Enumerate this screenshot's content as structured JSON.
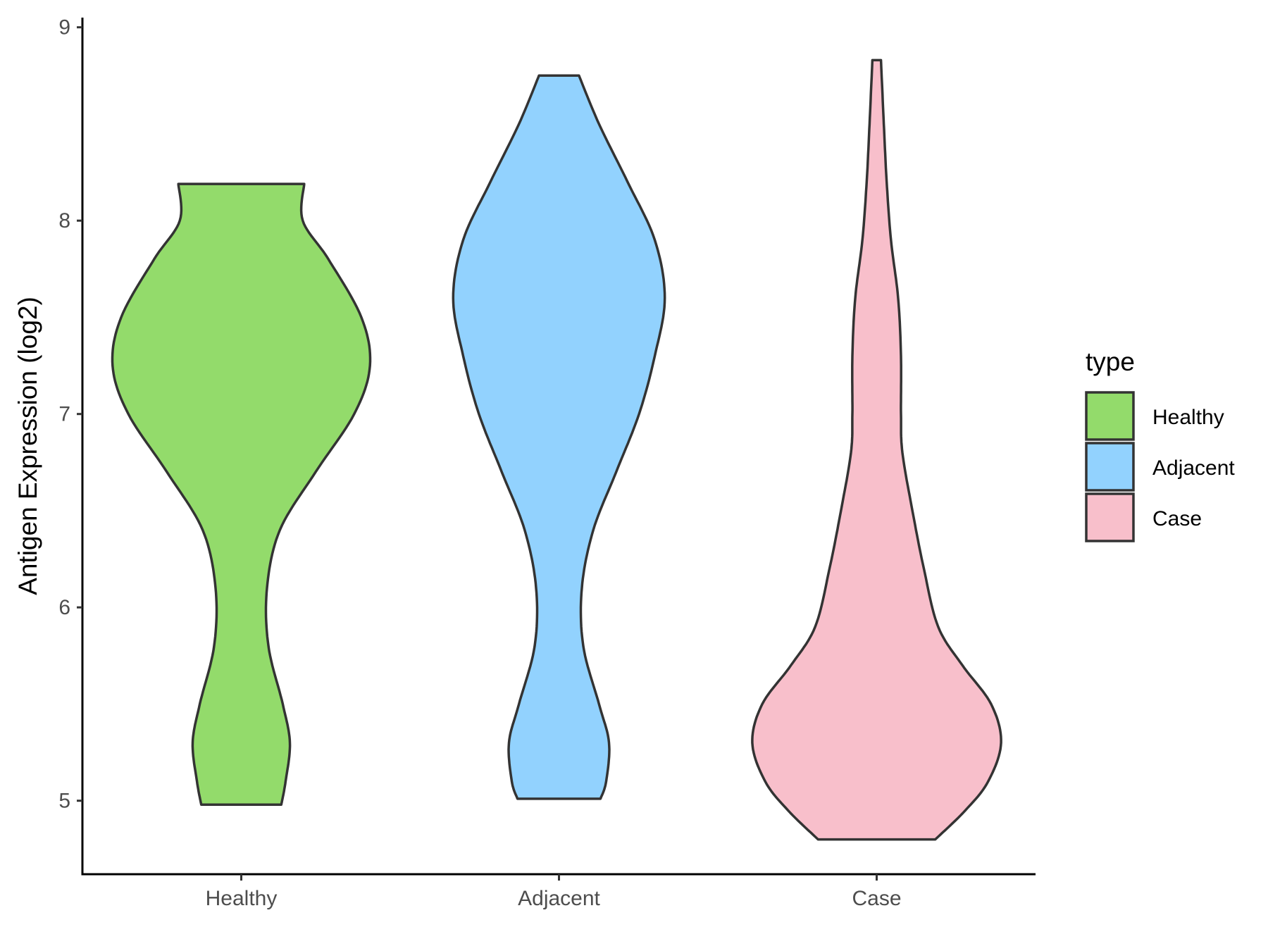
{
  "chart_data": {
    "type": "violin",
    "ylabel": "Antigen Expression (log2)",
    "xlabel": "",
    "ylim": [
      4.62,
      9.05
    ],
    "yticks": [
      5,
      6,
      7,
      8,
      9
    ],
    "grid": false,
    "legend": {
      "title": "type",
      "placement": "right",
      "items": [
        "Healthy",
        "Adjacent",
        "Case"
      ]
    },
    "series": [
      {
        "name": "Healthy",
        "color": "#93db6b",
        "min": 4.98,
        "max": 8.19,
        "density": [
          [
            4.98,
            0.28
          ],
          [
            5.1,
            0.31
          ],
          [
            5.3,
            0.34
          ],
          [
            5.5,
            0.29
          ],
          [
            5.8,
            0.19
          ],
          [
            6.1,
            0.18
          ],
          [
            6.4,
            0.27
          ],
          [
            6.7,
            0.52
          ],
          [
            7.0,
            0.79
          ],
          [
            7.25,
            0.9
          ],
          [
            7.5,
            0.84
          ],
          [
            7.8,
            0.61
          ],
          [
            8.0,
            0.43
          ],
          [
            8.19,
            0.44
          ]
        ]
      },
      {
        "name": "Adjacent",
        "color": "#92d2fe",
        "min": 5.01,
        "max": 8.75,
        "density": [
          [
            5.01,
            0.29
          ],
          [
            5.1,
            0.33
          ],
          [
            5.3,
            0.35
          ],
          [
            5.5,
            0.28
          ],
          [
            5.8,
            0.17
          ],
          [
            6.1,
            0.16
          ],
          [
            6.4,
            0.24
          ],
          [
            6.7,
            0.4
          ],
          [
            7.0,
            0.56
          ],
          [
            7.3,
            0.67
          ],
          [
            7.6,
            0.74
          ],
          [
            7.9,
            0.67
          ],
          [
            8.2,
            0.48
          ],
          [
            8.5,
            0.28
          ],
          [
            8.75,
            0.14
          ]
        ]
      },
      {
        "name": "Case",
        "color": "#f8bfcb",
        "min": 4.8,
        "max": 8.83,
        "density": [
          [
            4.8,
            0.41
          ],
          [
            4.95,
            0.62
          ],
          [
            5.1,
            0.78
          ],
          [
            5.3,
            0.87
          ],
          [
            5.5,
            0.8
          ],
          [
            5.7,
            0.6
          ],
          [
            5.9,
            0.43
          ],
          [
            6.2,
            0.33
          ],
          [
            6.5,
            0.25
          ],
          [
            6.8,
            0.18
          ],
          [
            7.0,
            0.17
          ],
          [
            7.3,
            0.17
          ],
          [
            7.6,
            0.15
          ],
          [
            7.9,
            0.1
          ],
          [
            8.2,
            0.07
          ],
          [
            8.5,
            0.05
          ],
          [
            8.83,
            0.03
          ]
        ]
      }
    ],
    "categories": [
      "Healthy",
      "Adjacent",
      "Case"
    ]
  }
}
